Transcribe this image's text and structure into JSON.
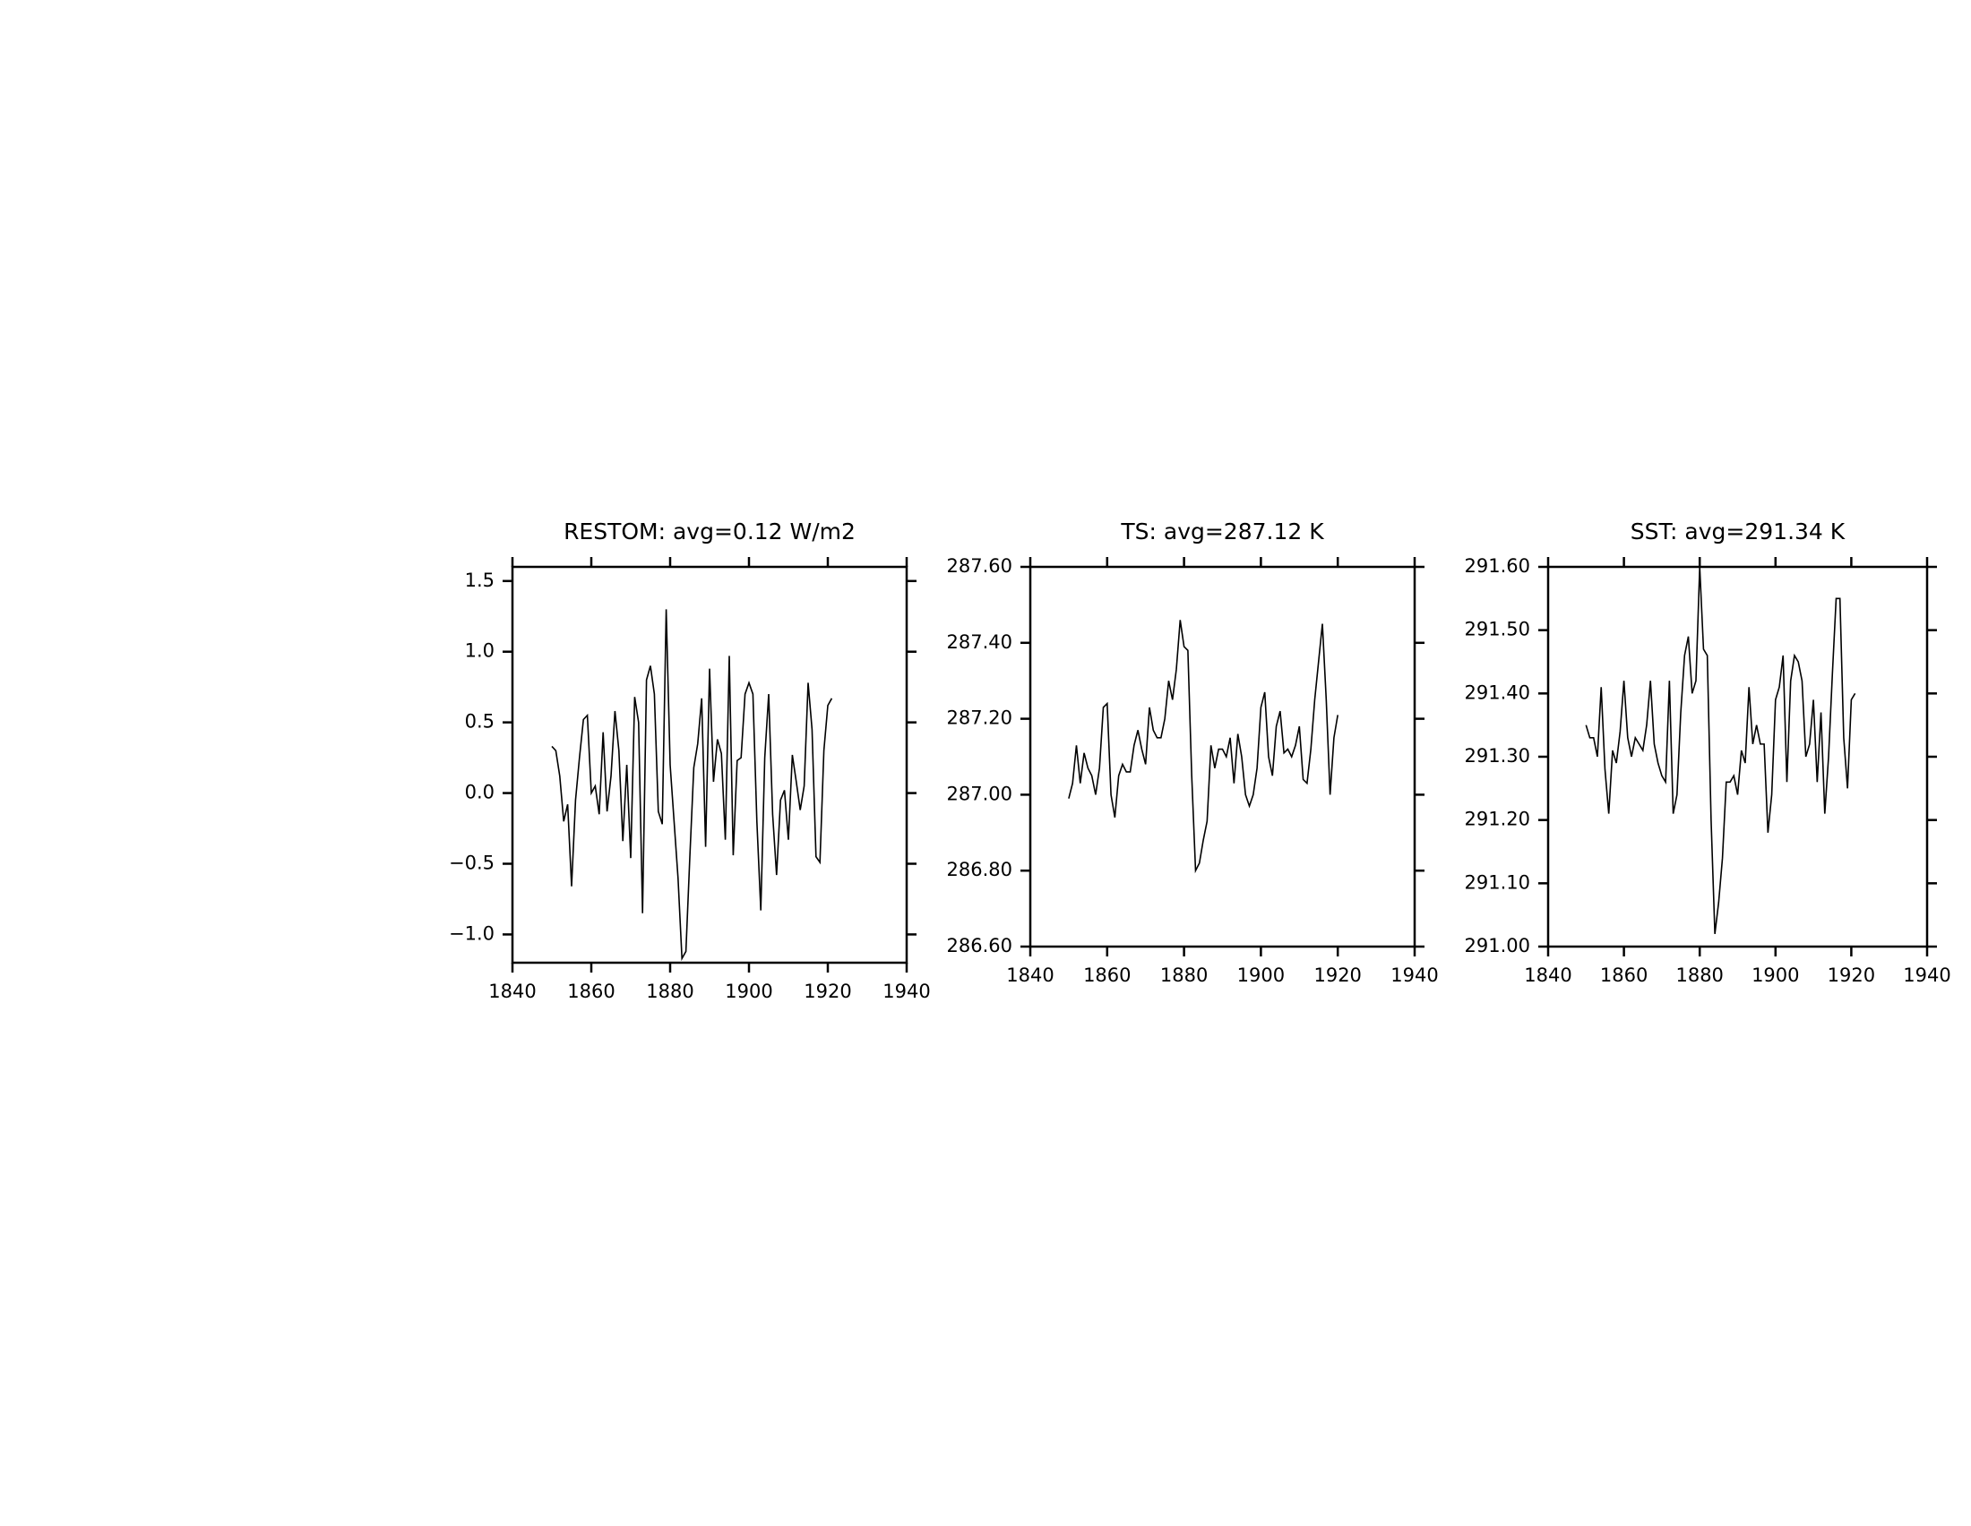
{
  "chart_data": [
    {
      "type": "line",
      "title": "RESTOM: avg=0.12 W/m2",
      "color": "#000000",
      "x": [
        1850,
        1851,
        1852,
        1853,
        1854,
        1855,
        1856,
        1857,
        1858,
        1859,
        1860,
        1861,
        1862,
        1863,
        1864,
        1865,
        1866,
        1867,
        1868,
        1869,
        1870,
        1871,
        1872,
        1873,
        1874,
        1875,
        1876,
        1877,
        1878,
        1879,
        1880,
        1881,
        1882,
        1883,
        1884,
        1885,
        1886,
        1887,
        1888,
        1889,
        1890,
        1891,
        1892,
        1893,
        1894,
        1895,
        1896,
        1897,
        1898,
        1899,
        1900,
        1901,
        1902,
        1903,
        1904,
        1905,
        1906,
        1907,
        1908,
        1909,
        1910,
        1911,
        1912,
        1913,
        1914,
        1915,
        1916,
        1917,
        1918,
        1919,
        1920,
        1921
      ],
      "values": [
        0.33,
        0.3,
        0.12,
        -0.2,
        -0.08,
        -0.66,
        -0.05,
        0.25,
        0.52,
        0.55,
        0.0,
        0.05,
        -0.15,
        0.43,
        -0.13,
        0.12,
        0.58,
        0.3,
        -0.34,
        0.2,
        -0.46,
        0.68,
        0.5,
        -0.85,
        0.8,
        0.9,
        0.7,
        -0.13,
        -0.22,
        1.3,
        0.2,
        -0.2,
        -0.6,
        -1.17,
        -1.12,
        -0.45,
        0.18,
        0.35,
        0.67,
        -0.38,
        0.88,
        0.08,
        0.38,
        0.28,
        -0.33,
        0.97,
        -0.44,
        0.23,
        0.25,
        0.7,
        0.78,
        0.7,
        -0.2,
        -0.83,
        0.25,
        0.7,
        -0.15,
        -0.58,
        -0.05,
        0.02,
        -0.33,
        0.27,
        0.08,
        -0.12,
        0.05,
        0.78,
        0.45,
        -0.45,
        -0.49,
        0.3,
        0.62,
        0.67
      ],
      "xlim": [
        1840,
        1940
      ],
      "xticks": [
        1840,
        1860,
        1880,
        1900,
        1920,
        1940
      ],
      "ylim": [
        -1.2,
        1.6
      ],
      "yticks": [
        {
          "value": -1.0,
          "label": "−1.0"
        },
        {
          "value": -0.5,
          "label": "−0.5"
        },
        {
          "value": 0.0,
          "label": "0.0"
        },
        0.5,
        {
          "value": 1.0,
          "label": "1.0"
        },
        1.5
      ]
    },
    {
      "type": "line",
      "title": "TS: avg=287.12 K",
      "color": "#000000",
      "x": [
        1850,
        1851,
        1852,
        1853,
        1854,
        1855,
        1856,
        1857,
        1858,
        1859,
        1860,
        1861,
        1862,
        1863,
        1864,
        1865,
        1866,
        1867,
        1868,
        1869,
        1870,
        1871,
        1872,
        1873,
        1874,
        1875,
        1876,
        1877,
        1878,
        1879,
        1880,
        1881,
        1882,
        1883,
        1884,
        1885,
        1886,
        1887,
        1888,
        1889,
        1890,
        1891,
        1892,
        1893,
        1894,
        1895,
        1896,
        1897,
        1898,
        1899,
        1900,
        1901,
        1902,
        1903,
        1904,
        1905,
        1906,
        1907,
        1908,
        1909,
        1910,
        1911,
        1912,
        1913,
        1914,
        1915,
        1916,
        1917,
        1918,
        1919,
        1920
      ],
      "values": [
        286.99,
        287.03,
        287.13,
        287.03,
        287.11,
        287.07,
        287.05,
        287.0,
        287.07,
        287.23,
        287.24,
        287.0,
        286.94,
        287.05,
        287.08,
        287.06,
        287.06,
        287.13,
        287.17,
        287.12,
        287.08,
        287.23,
        287.17,
        287.15,
        287.15,
        287.2,
        287.3,
        287.25,
        287.33,
        287.46,
        287.39,
        287.38,
        287.05,
        286.8,
        286.82,
        286.88,
        286.93,
        287.13,
        287.07,
        287.12,
        287.12,
        287.1,
        287.15,
        287.03,
        287.16,
        287.1,
        287.0,
        286.97,
        287.0,
        287.07,
        287.23,
        287.27,
        287.1,
        287.05,
        287.18,
        287.22,
        287.11,
        287.12,
        287.1,
        287.13,
        287.18,
        287.04,
        287.03,
        287.12,
        287.25,
        287.35,
        287.45,
        287.25,
        287.0,
        287.15,
        287.21
      ],
      "xlim": [
        1840,
        1940
      ],
      "xticks": [
        1840,
        1860,
        1880,
        1900,
        1920,
        1940
      ],
      "ylim": [
        286.6,
        287.6
      ],
      "yticks": [
        {
          "value": 286.6,
          "label": "286.60"
        },
        {
          "value": 286.8,
          "label": "286.80"
        },
        {
          "value": 287.0,
          "label": "287.00"
        },
        {
          "value": 287.2,
          "label": "287.20"
        },
        {
          "value": 287.4,
          "label": "287.40"
        },
        {
          "value": 287.6,
          "label": "287.60"
        }
      ]
    },
    {
      "type": "line",
      "title": "SST: avg=291.34 K",
      "color": "#000000",
      "x": [
        1850,
        1851,
        1852,
        1853,
        1854,
        1855,
        1856,
        1857,
        1858,
        1859,
        1860,
        1861,
        1862,
        1863,
        1864,
        1865,
        1866,
        1867,
        1868,
        1869,
        1870,
        1871,
        1872,
        1873,
        1874,
        1875,
        1876,
        1877,
        1878,
        1879,
        1880,
        1881,
        1882,
        1883,
        1884,
        1885,
        1886,
        1887,
        1888,
        1889,
        1890,
        1891,
        1892,
        1893,
        1894,
        1895,
        1896,
        1897,
        1898,
        1899,
        1900,
        1901,
        1902,
        1903,
        1904,
        1905,
        1906,
        1907,
        1908,
        1909,
        1910,
        1911,
        1912,
        1913,
        1914,
        1915,
        1916,
        1917,
        1918,
        1919,
        1920,
        1921
      ],
      "values": [
        291.35,
        291.33,
        291.33,
        291.3,
        291.41,
        291.28,
        291.21,
        291.31,
        291.29,
        291.34,
        291.42,
        291.33,
        291.3,
        291.33,
        291.32,
        291.31,
        291.35,
        291.42,
        291.32,
        291.29,
        291.27,
        291.26,
        291.42,
        291.21,
        291.24,
        291.37,
        291.46,
        291.49,
        291.4,
        291.42,
        291.6,
        291.47,
        291.46,
        291.2,
        291.02,
        291.07,
        291.14,
        291.26,
        291.26,
        291.27,
        291.24,
        291.31,
        291.29,
        291.41,
        291.32,
        291.35,
        291.32,
        291.32,
        291.18,
        291.24,
        291.39,
        291.41,
        291.46,
        291.26,
        291.42,
        291.46,
        291.45,
        291.42,
        291.3,
        291.32,
        291.39,
        291.26,
        291.37,
        291.21,
        291.3,
        291.43,
        291.55,
        291.55,
        291.33,
        291.25,
        291.39,
        291.4
      ],
      "xlim": [
        1840,
        1940
      ],
      "xticks": [
        1840,
        1860,
        1880,
        1900,
        1920,
        1940
      ],
      "ylim": [
        291.0,
        291.6
      ],
      "yticks": [
        {
          "value": 291.0,
          "label": "291.00"
        },
        {
          "value": 291.1,
          "label": "291.10"
        },
        {
          "value": 291.2,
          "label": "291.20"
        },
        {
          "value": 291.3,
          "label": "291.30"
        },
        {
          "value": 291.4,
          "label": "291.40"
        },
        {
          "value": 291.5,
          "label": "291.50"
        },
        {
          "value": 291.6,
          "label": "291.60"
        }
      ]
    }
  ]
}
